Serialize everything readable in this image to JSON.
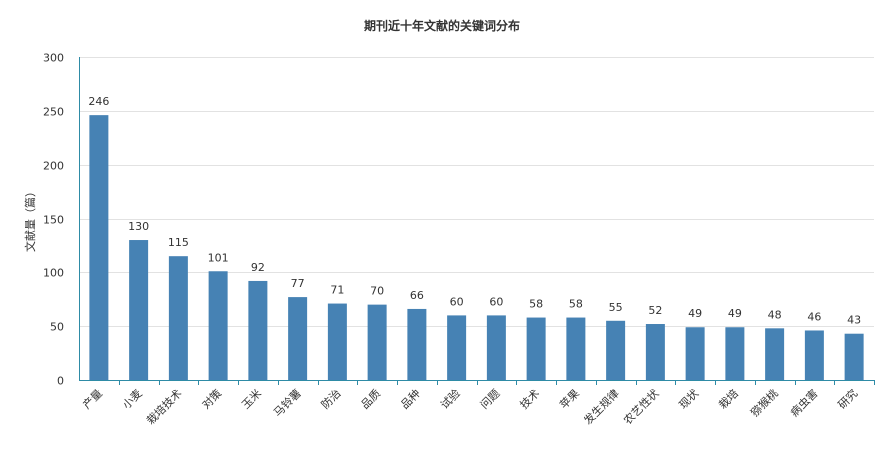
{
  "chart_data": {
    "type": "bar",
    "title": "期刊近十年文献的关键词分布",
    "xlabel": "",
    "ylabel": "文献量（篇）",
    "ylim": [
      0,
      300
    ],
    "yticks": [
      0,
      50,
      100,
      150,
      200,
      250,
      300
    ],
    "grid": true,
    "bar_color": "#4682b4",
    "axis_color": "#2e8ba6",
    "categories": [
      "产量",
      "小麦",
      "栽培技术",
      "对策",
      "玉米",
      "马铃薯",
      "防治",
      "品质",
      "品种",
      "试验",
      "问题",
      "技术",
      "苹果",
      "发生规律",
      "农艺性状",
      "现状",
      "栽培",
      "猕猴桃",
      "病虫害",
      "研究"
    ],
    "values": [
      246,
      130,
      115,
      101,
      92,
      77,
      71,
      70,
      66,
      60,
      60,
      58,
      58,
      55,
      52,
      49,
      49,
      48,
      46,
      43
    ]
  }
}
